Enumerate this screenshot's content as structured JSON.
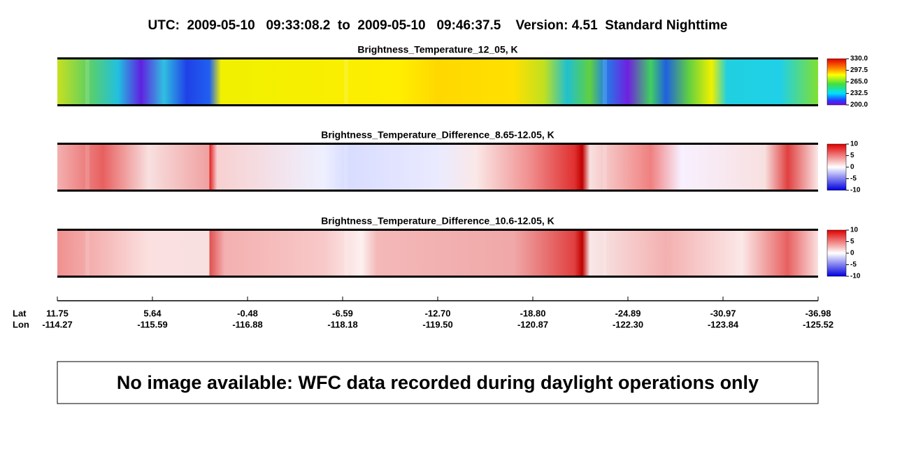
{
  "header": {
    "title": "UTC:  2009-05-10   09:33:08.2  to  2009-05-10   09:46:37.5    Version: 4.51  Standard Nighttime"
  },
  "panels": [
    {
      "title": "Brightness_Temperature_12_05, K",
      "colorbar": [
        "330.0",
        "297.5",
        "265.0",
        "232.5",
        "200.0"
      ]
    },
    {
      "title": "Brightness_Temperature_Difference_8.65-12.05, K",
      "colorbar": [
        "10",
        "5",
        "0",
        "-5",
        "-10"
      ]
    },
    {
      "title": "Brightness_Temperature_Difference_10.6-12.05, K",
      "colorbar": [
        "10",
        "5",
        "0",
        "-5",
        "-10"
      ]
    }
  ],
  "axis": {
    "lat_label": "Lat",
    "lon_label": "Lon",
    "lat": [
      "11.75",
      "5.64",
      "-0.48",
      "-6.59",
      "-12.70",
      "-18.80",
      "-24.89",
      "-30.97",
      "-36.98"
    ],
    "lon": [
      "-114.27",
      "-115.59",
      "-116.88",
      "-118.18",
      "-119.50",
      "-120.87",
      "-122.30",
      "-123.84",
      "-125.52"
    ]
  },
  "message": "No image available: WFC data recorded during daylight operations only"
}
